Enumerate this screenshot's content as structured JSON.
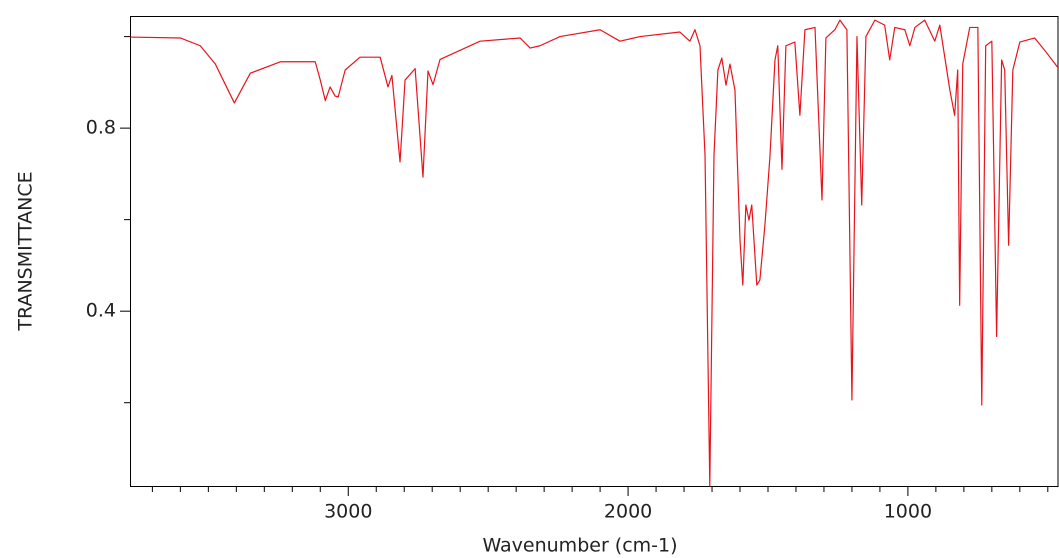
{
  "chart_data": {
    "type": "line",
    "x_label": "Wavenumber (cm-1)",
    "y_label": "TRANSMITTANCE",
    "xlim": [
      3780,
      460
    ],
    "ylim": [
      0.018,
      1.045
    ],
    "xticks": [
      3000,
      2000,
      1000
    ],
    "yticks": [
      0.4,
      0.8
    ],
    "x_minor_ticks": [
      3700,
      3600,
      3500,
      3400,
      3300,
      3200,
      3100,
      2900,
      2800,
      2700,
      2600,
      2500,
      2400,
      2300,
      2200,
      2100,
      1900,
      1800,
      1700,
      1600,
      1500,
      1400,
      1300,
      1200,
      1100,
      900,
      800,
      700,
      600,
      500
    ],
    "y_minor_ticks": [
      0.2,
      0.6,
      1.0
    ],
    "grid": false,
    "x": [
      3779,
      3600,
      3529,
      3475,
      3407,
      3350,
      3243,
      3118,
      3100,
      3082,
      3065,
      3047,
      3036,
      3011,
      2958,
      2886,
      2858,
      2844,
      2815,
      2797,
      2761,
      2733,
      2715,
      2697,
      2672,
      2529,
      2386,
      2350,
      2315,
      2243,
      2100,
      2029,
      1957,
      1815,
      1779,
      1761,
      1743,
      1725,
      1708,
      1693,
      1679,
      1665,
      1650,
      1636,
      1618,
      1600,
      1590,
      1579,
      1568,
      1558,
      1540,
      1529,
      1511,
      1493,
      1475,
      1465,
      1450,
      1436,
      1404,
      1386,
      1368,
      1332,
      1307,
      1293,
      1261,
      1243,
      1218,
      1200,
      1182,
      1165,
      1150,
      1118,
      1083,
      1065,
      1047,
      1011,
      993,
      975,
      940,
      904,
      886,
      850,
      833,
      822,
      815,
      804,
      779,
      750,
      736,
      722,
      700,
      683,
      665,
      654,
      640,
      625,
      600,
      547,
      511,
      461
    ],
    "series": [
      {
        "color": "#e8141c",
        "values": [
          0.999,
          0.997,
          0.98,
          0.94,
          0.855,
          0.92,
          0.945,
          0.945,
          0.905,
          0.86,
          0.89,
          0.87,
          0.868,
          0.927,
          0.955,
          0.955,
          0.89,
          0.915,
          0.726,
          0.905,
          0.93,
          0.693,
          0.925,
          0.895,
          0.95,
          0.99,
          0.997,
          0.975,
          0.98,
          1.0,
          1.015,
          0.99,
          1.0,
          1.01,
          0.99,
          1.015,
          0.98,
          0.74,
          0.018,
          0.74,
          0.927,
          0.953,
          0.894,
          0.94,
          0.883,
          0.555,
          0.457,
          0.632,
          0.599,
          0.632,
          0.457,
          0.468,
          0.588,
          0.738,
          0.949,
          0.98,
          0.71,
          0.98,
          0.988,
          0.828,
          1.015,
          1.02,
          0.643,
          0.997,
          1.015,
          1.036,
          1.015,
          0.206,
          1.0,
          0.632,
          1.0,
          1.036,
          1.025,
          0.949,
          1.02,
          1.015,
          0.98,
          1.02,
          1.036,
          0.99,
          1.025,
          0.883,
          0.828,
          0.927,
          0.413,
          0.94,
          1.02,
          1.02,
          0.195,
          0.98,
          0.99,
          0.345,
          0.949,
          0.927,
          0.544,
          0.927,
          0.988,
          0.997,
          0.97,
          0.93
        ]
      }
    ]
  }
}
